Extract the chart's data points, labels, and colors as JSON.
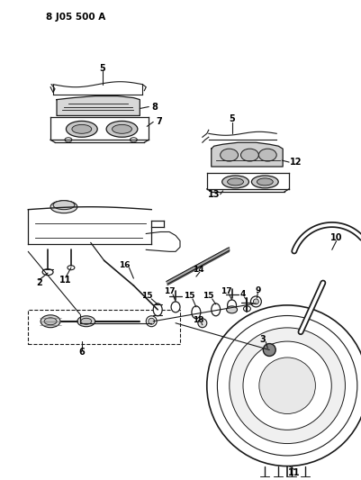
{
  "title": "8 J05 500 A",
  "bg_color": "#ffffff",
  "line_color": "#1a1a1a",
  "figsize": [
    4.02,
    5.33
  ],
  "dpi": 100
}
